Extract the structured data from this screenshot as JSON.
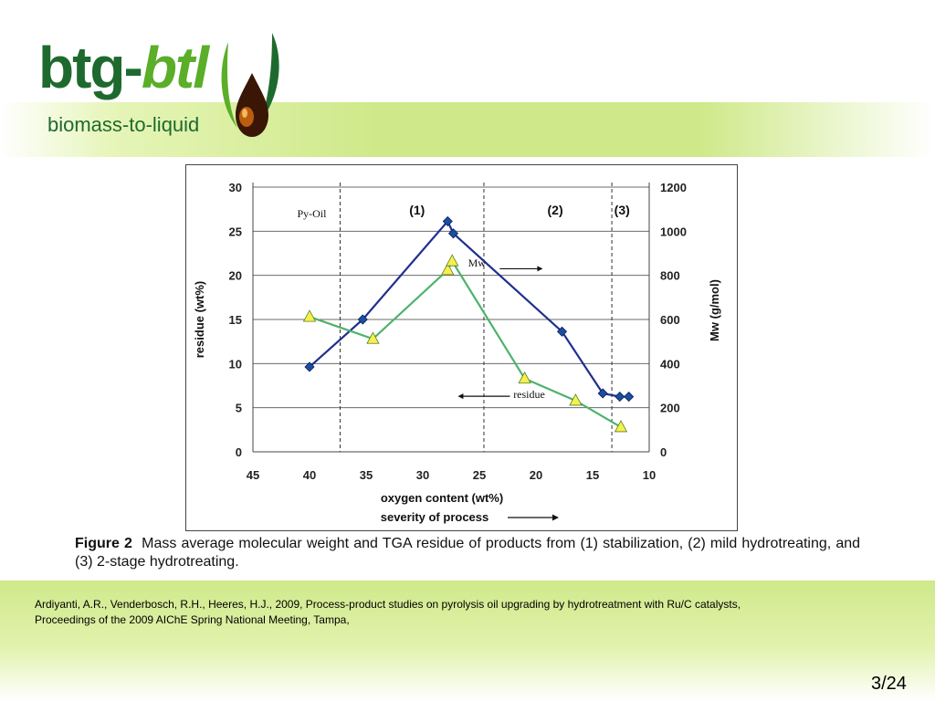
{
  "logo": {
    "brand_left": "btg-",
    "brand_right": "btl",
    "tagline": "biomass-to-liquid"
  },
  "colors": {
    "band": "#cfe98a",
    "brand_dark": "#1e6a2e",
    "brand_light": "#5aae28",
    "mw_series": "#1f2f8f",
    "residue_series": "#4db36b",
    "triangle_fill": "#f6f04a",
    "diamond_fill": "#1a4fa0"
  },
  "chart_data": {
    "type": "line",
    "xlabel": "oxygen content (wt%)",
    "xlabel2": "severity of process",
    "ylabel": "residue (wt%)",
    "y2label": "Mw (g/mol)",
    "xlim": [
      45,
      10
    ],
    "ylim": [
      0,
      30
    ],
    "y2lim": [
      0,
      1200
    ],
    "xticks": [
      "45",
      "40",
      "35",
      "30",
      "25",
      "20",
      "15",
      "10"
    ],
    "yticks": [
      "0",
      "5",
      "10",
      "15",
      "20",
      "25",
      "30"
    ],
    "y2ticks": [
      "0",
      "200",
      "400",
      "600",
      "800",
      "1000",
      "1200"
    ],
    "grid": "horizontal",
    "regions": [
      "Py-Oil",
      "(1)",
      "(2)",
      "(3)"
    ],
    "region_dividers_x": [
      37.3,
      24.6,
      13.3
    ],
    "annotations": {
      "mw": "Mw",
      "residue": "residue"
    },
    "series": [
      {
        "name": "Mw",
        "axis": "right",
        "marker": "diamond",
        "x": [
          40,
          35.3,
          27.8,
          27.3,
          17.7,
          14.1,
          12.6,
          11.8
        ],
        "y": [
          385,
          600,
          1045,
          990,
          545,
          265,
          250,
          250
        ]
      },
      {
        "name": "residue",
        "axis": "left",
        "marker": "triangle",
        "x": [
          40,
          34.4,
          27.8,
          27.4,
          21,
          16.5,
          12.5
        ],
        "y": [
          15.3,
          12.8,
          20.6,
          21.6,
          8.3,
          5.8,
          2.8
        ]
      }
    ]
  },
  "caption": {
    "figure_label": "Figure 2",
    "text": "Mass average molecular weight and TGA residue of products from (1) stabilization, (2) mild hydrotreating, and (3) 2-stage hydrotreating."
  },
  "reference": {
    "line1": "Ardiyanti, A.R., Venderbosch, R.H., Heeres, H.J., 2009, Process-product studies on pyrolysis oil upgrading by hydrotreatment with Ru/C catalysts,",
    "line2": "Proceedings of the 2009 AIChE Spring National Meeting, Tampa,"
  },
  "page_number": "3/24"
}
